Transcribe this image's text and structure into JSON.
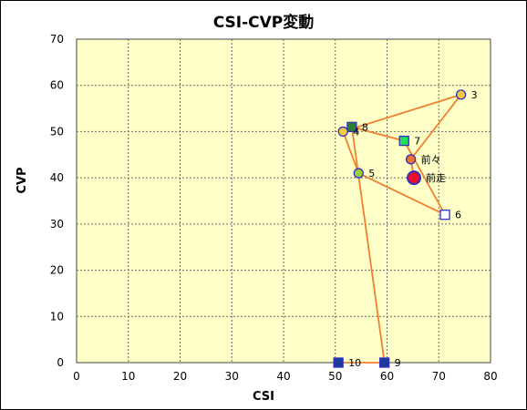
{
  "chart_data": {
    "type": "scatter",
    "title": "CSI-CVP変動",
    "xlabel": "CSI",
    "ylabel": "CVP",
    "xlim": [
      0,
      80
    ],
    "ylim": [
      0,
      70
    ],
    "x_ticks": [
      "0",
      "10",
      "20",
      "30",
      "40",
      "50",
      "60",
      "70",
      "80"
    ],
    "y_ticks": [
      "0",
      "10",
      "20",
      "30",
      "40",
      "50",
      "60",
      "70"
    ],
    "grid": true,
    "legend": "none",
    "colors": {
      "plot_bg": "#FFFFC8",
      "grid": "#6b6b6b",
      "line": "#F08030",
      "marker_edge": "#3030C0"
    },
    "path": [
      {
        "label": "10",
        "x": 50.6,
        "y": 0,
        "marker": "square",
        "fill": "#1C3C9C"
      },
      {
        "label": "9",
        "x": 59.5,
        "y": 0,
        "marker": "square",
        "fill": "#1C3C9C"
      },
      {
        "label": "8",
        "x": 53.2,
        "y": 51,
        "marker": "square",
        "fill": "#2E7D32"
      },
      {
        "label": "7",
        "x": 63.3,
        "y": 48,
        "marker": "square",
        "fill": "#22DD55"
      },
      {
        "label": "6",
        "x": 71.2,
        "y": 32,
        "marker": "square",
        "fill": "#FFFFFF"
      },
      {
        "label": "5",
        "x": 54.5,
        "y": 41,
        "marker": "circle",
        "fill": "#9CCB3C"
      },
      {
        "label": "4",
        "x": 51.5,
        "y": 50,
        "marker": "circle",
        "fill": "#F5C842"
      },
      {
        "label": "3",
        "x": 74.3,
        "y": 58,
        "marker": "circle",
        "fill": "#F5C842"
      },
      {
        "label": "前々",
        "x": 64.6,
        "y": 44,
        "marker": "circle",
        "fill": "#F07030"
      },
      {
        "label": "前走",
        "x": 65.2,
        "y": 40,
        "marker": "circle-large",
        "fill": "#E8102A"
      }
    ]
  }
}
